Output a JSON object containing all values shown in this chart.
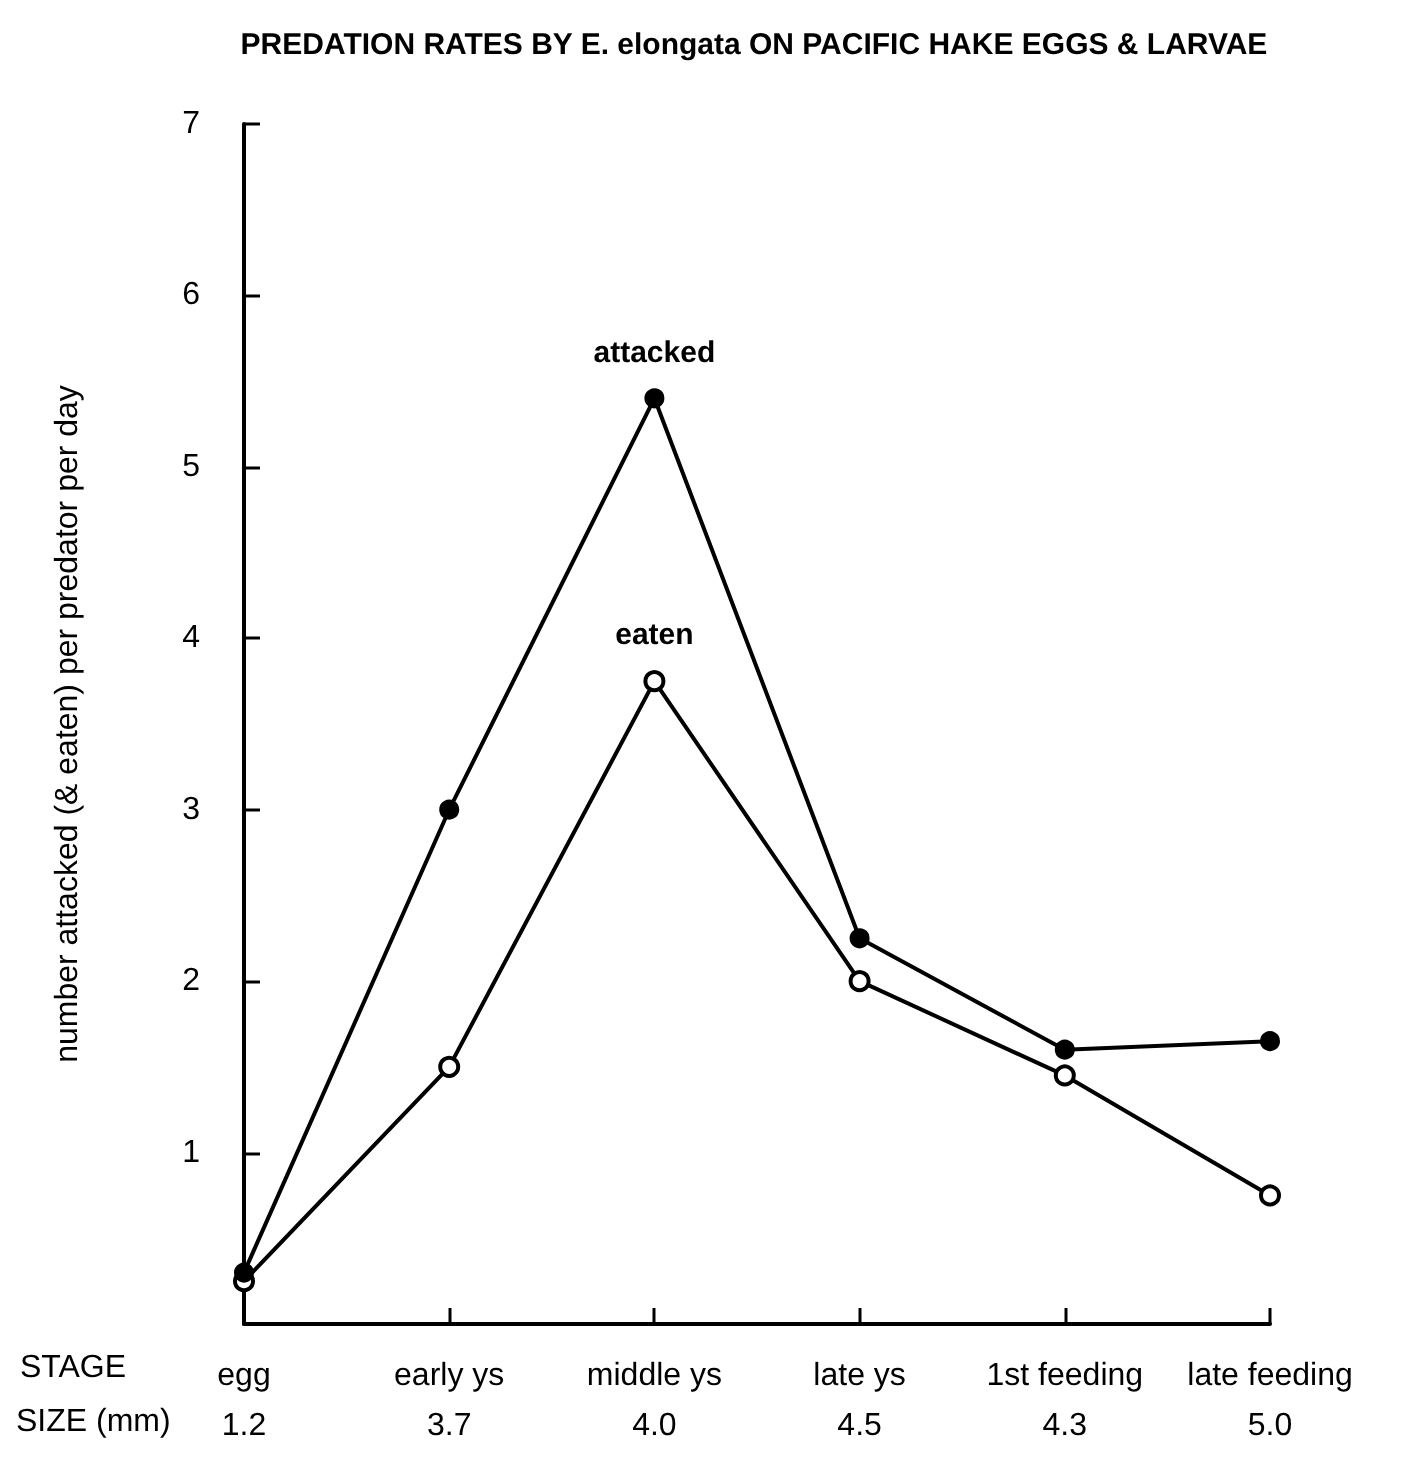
{
  "chart_data": {
    "type": "line",
    "title": "PREDATION RATES BY E. elongata ON PACIFIC HAKE EGGS & LARVAE",
    "ylabel": "number attacked (& eaten) per predator per day",
    "categories": [
      "egg",
      "early ys",
      "middle ys",
      "late ys",
      "1st feeding",
      "late feeding"
    ],
    "series": [
      {
        "name": "attacked",
        "color": "#000000",
        "values": [
          0.3,
          3.0,
          5.4,
          2.25,
          1.6,
          1.65
        ]
      },
      {
        "name": "eaten",
        "color": "#000000",
        "values": [
          0.25,
          1.5,
          3.75,
          2.0,
          1.45,
          0.75
        ]
      }
    ],
    "annotations": [
      "STAGE",
      "SIZE (mm)",
      "1.2",
      "3.7",
      "4.0",
      "4.5",
      "4.3",
      "5.0"
    ],
    "ylim": [
      0,
      7
    ],
    "yticks": [
      1,
      2,
      3,
      4,
      5,
      6,
      7
    ],
    "grid": false,
    "legend": false,
    "marker": "circle",
    "line_style": "solid"
  }
}
